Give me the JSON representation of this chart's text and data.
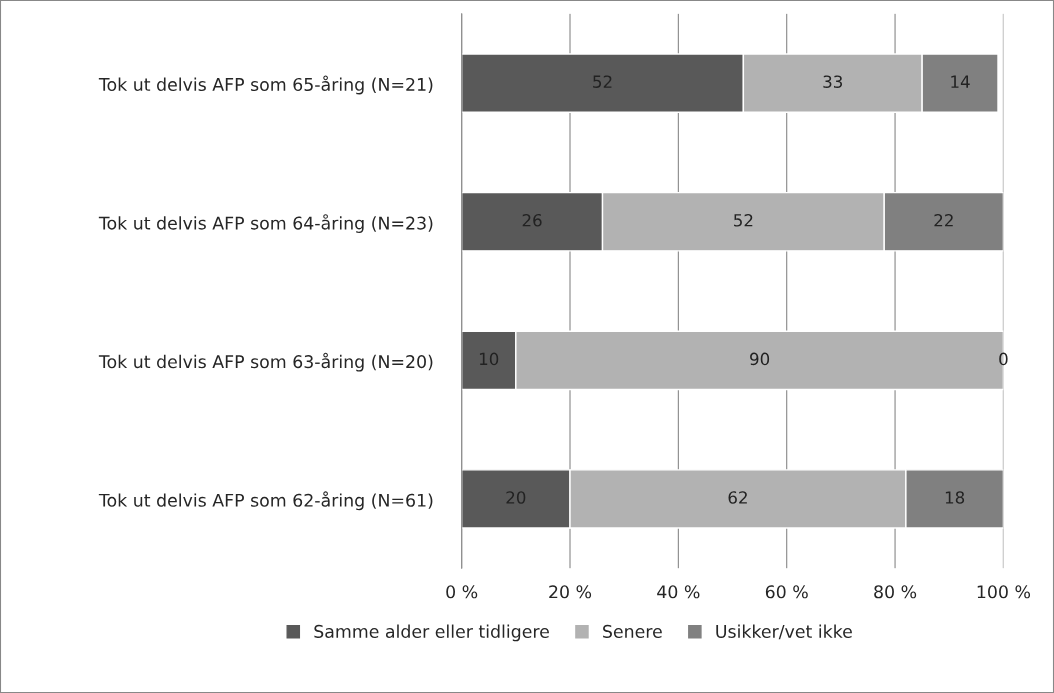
{
  "chart_data": {
    "type": "bar",
    "orientation": "horizontal",
    "stacked": true,
    "categories": [
      "Tok ut delvis AFP som 65-åring (N=21)",
      "Tok ut delvis AFP som 64-åring (N=23)",
      "Tok ut delvis AFP som 63-åring (N=20)",
      "Tok ut delvis AFP som 62-åring (N=61)"
    ],
    "series": [
      {
        "name": "Samme alder eller tidligere",
        "color": "#595959",
        "values": [
          52,
          26,
          10,
          20
        ]
      },
      {
        "name": "Senere",
        "color": "#b2b2b2",
        "values": [
          33,
          52,
          90,
          62
        ]
      },
      {
        "name": "Usikker/vet ikke",
        "color": "#808080",
        "values": [
          14,
          22,
          0,
          18
        ]
      }
    ],
    "xlim": [
      0,
      100
    ],
    "xticks": [
      {
        "value": 0,
        "label": "0 %"
      },
      {
        "value": 20,
        "label": "20 %"
      },
      {
        "value": 40,
        "label": "40 %"
      },
      {
        "value": 60,
        "label": "60 %"
      },
      {
        "value": 80,
        "label": "80 %"
      },
      {
        "value": 100,
        "label": "100 %"
      }
    ],
    "data_labels": true,
    "grid": "x",
    "legend": "bottom"
  }
}
